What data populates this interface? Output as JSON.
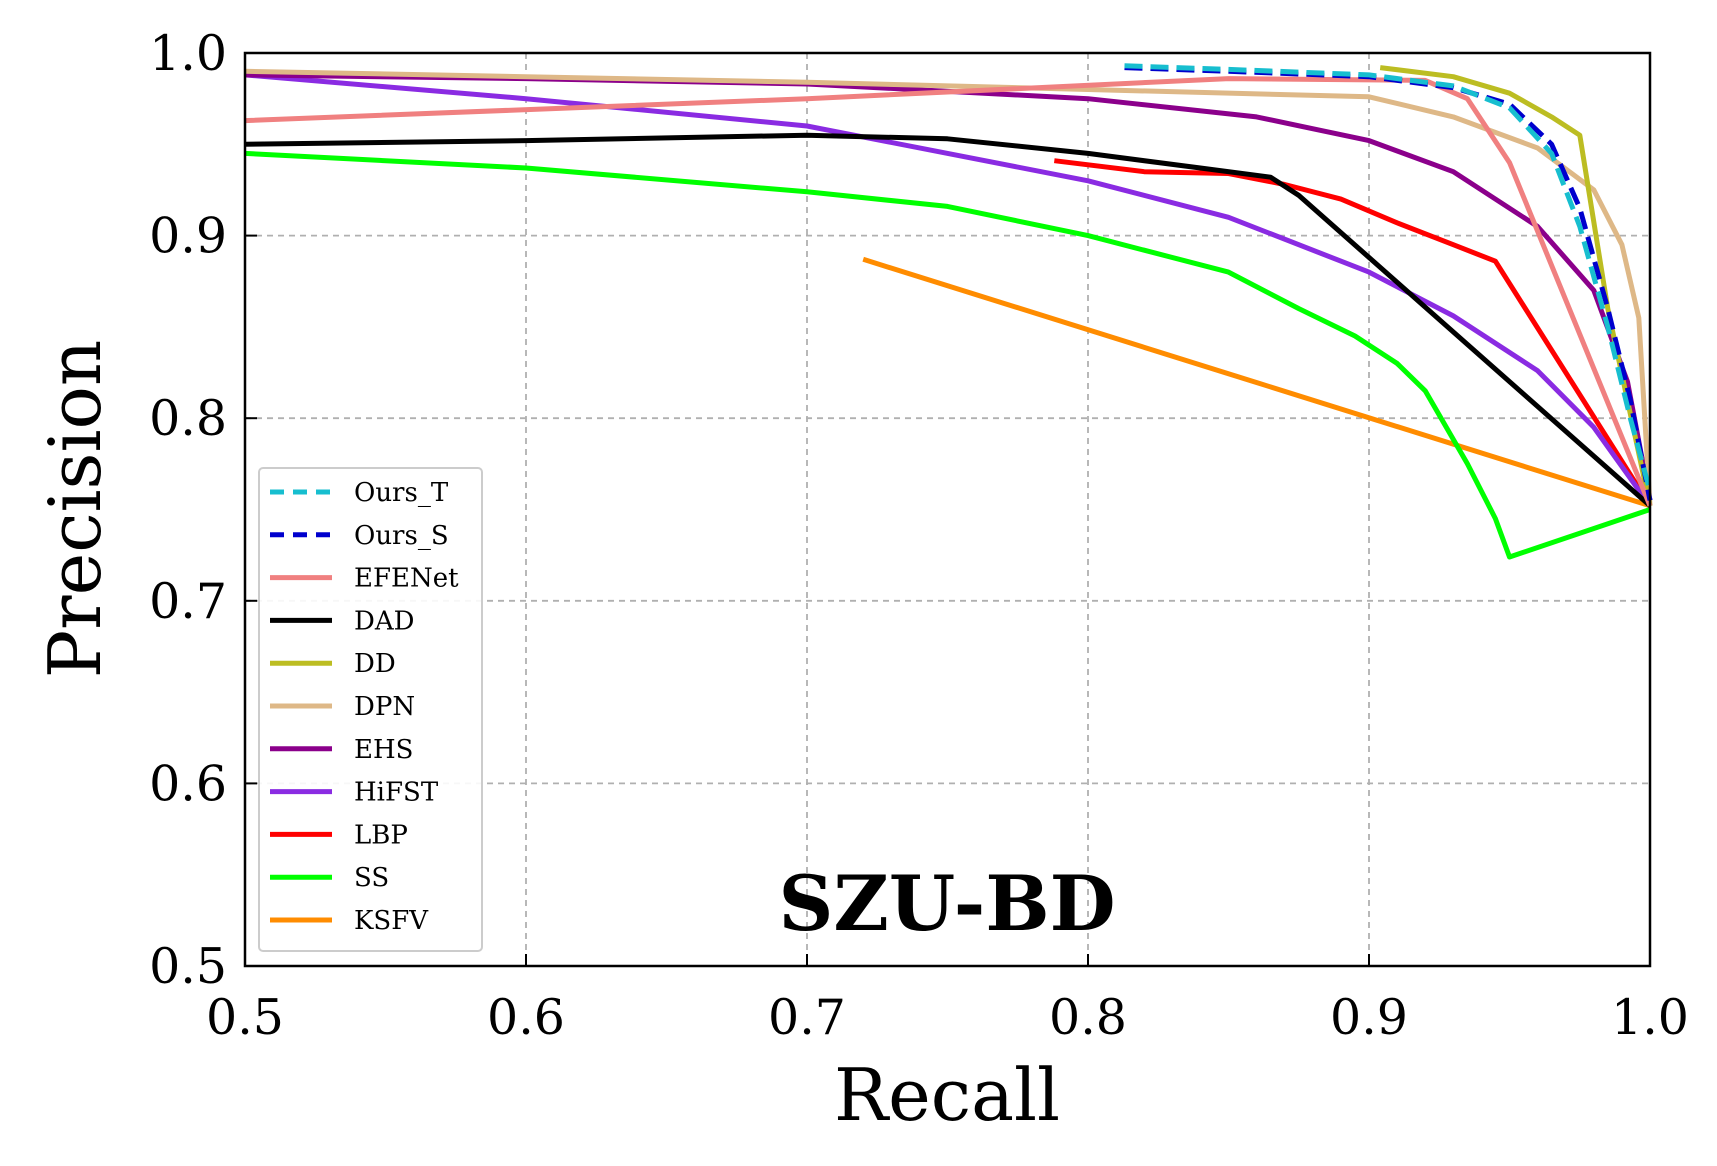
{
  "chart_data": {
    "type": "line",
    "title": "SZU-BD",
    "xlabel": "Recall",
    "ylabel": "Precision",
    "xlim": [
      0.5,
      1.0
    ],
    "ylim": [
      0.5,
      1.0
    ],
    "xticks": [
      "0.5",
      "0.6",
      "0.7",
      "0.8",
      "0.9",
      "1.0"
    ],
    "yticks": [
      "0.5",
      "0.6",
      "0.7",
      "0.8",
      "0.9",
      "1.0"
    ],
    "grid": true,
    "legend_position": "lower-left",
    "series": [
      {
        "name": "Ours_T",
        "color": "#17becf",
        "dash": "dashed",
        "x": [
          0.813,
          0.85,
          0.9,
          0.93,
          0.95,
          0.965,
          0.975,
          0.985,
          0.993,
          1.0
        ],
        "y": [
          0.993,
          0.991,
          0.988,
          0.982,
          0.97,
          0.945,
          0.905,
          0.85,
          0.8,
          0.76
        ]
      },
      {
        "name": "Ours_S",
        "color": "#0000cd",
        "dash": "dashed",
        "x": [
          0.813,
          0.85,
          0.9,
          0.93,
          0.95,
          0.965,
          0.975,
          0.985,
          0.993,
          1.0
        ],
        "y": [
          0.992,
          0.99,
          0.987,
          0.981,
          0.972,
          0.95,
          0.915,
          0.86,
          0.81,
          0.755
        ]
      },
      {
        "name": "EFENet",
        "color": "#f08080",
        "dash": "solid",
        "x": [
          0.5,
          0.7,
          0.85,
          0.92,
          0.935,
          0.95,
          1.0
        ],
        "y": [
          0.963,
          0.975,
          0.986,
          0.985,
          0.975,
          0.94,
          0.752
        ]
      },
      {
        "name": "DAD",
        "color": "#000000",
        "dash": "solid",
        "x": [
          0.5,
          0.6,
          0.7,
          0.75,
          0.8,
          0.84,
          0.865,
          0.875,
          1.0
        ],
        "y": [
          0.95,
          0.952,
          0.955,
          0.953,
          0.945,
          0.937,
          0.932,
          0.922,
          0.752
        ]
      },
      {
        "name": "DD",
        "color": "#bcbd22",
        "dash": "solid",
        "x": [
          0.904,
          0.93,
          0.95,
          0.965,
          0.975,
          0.985,
          1.0
        ],
        "y": [
          0.992,
          0.987,
          0.978,
          0.965,
          0.955,
          0.86,
          0.752
        ]
      },
      {
        "name": "DPN",
        "color": "#deb887",
        "dash": "solid",
        "x": [
          0.5,
          0.6,
          0.7,
          0.8,
          0.9,
          0.93,
          0.96,
          0.98,
          0.99,
          0.996,
          1.0
        ],
        "y": [
          0.99,
          0.987,
          0.984,
          0.98,
          0.976,
          0.965,
          0.948,
          0.925,
          0.895,
          0.855,
          0.752
        ]
      },
      {
        "name": "EHS",
        "color": "#8b008b",
        "dash": "solid",
        "x": [
          0.5,
          0.6,
          0.7,
          0.8,
          0.86,
          0.9,
          0.93,
          0.96,
          0.98,
          0.992,
          1.0
        ],
        "y": [
          0.988,
          0.986,
          0.983,
          0.975,
          0.965,
          0.952,
          0.935,
          0.905,
          0.87,
          0.82,
          0.755
        ]
      },
      {
        "name": "HiFST",
        "color": "#8a2be2",
        "dash": "solid",
        "x": [
          0.5,
          0.6,
          0.7,
          0.8,
          0.85,
          0.9,
          0.93,
          0.96,
          0.98,
          1.0
        ],
        "y": [
          0.988,
          0.975,
          0.96,
          0.93,
          0.91,
          0.88,
          0.856,
          0.826,
          0.795,
          0.752
        ]
      },
      {
        "name": "LBP",
        "color": "#ff0000",
        "dash": "solid",
        "x": [
          0.788,
          0.82,
          0.85,
          0.87,
          0.89,
          0.91,
          0.93,
          0.945,
          1.0
        ],
        "y": [
          0.941,
          0.935,
          0.934,
          0.928,
          0.92,
          0.907,
          0.895,
          0.886,
          0.752
        ]
      },
      {
        "name": "SS",
        "color": "#00ff00",
        "dash": "solid",
        "x": [
          0.5,
          0.6,
          0.7,
          0.75,
          0.8,
          0.85,
          0.875,
          0.895,
          0.91,
          0.92,
          0.935,
          0.945,
          0.95,
          1.0
        ],
        "y": [
          0.945,
          0.937,
          0.924,
          0.916,
          0.9,
          0.88,
          0.86,
          0.845,
          0.83,
          0.815,
          0.775,
          0.745,
          0.724,
          0.75
        ]
      },
      {
        "name": "KSFV",
        "color": "#ff8c00",
        "dash": "solid",
        "x": [
          0.72,
          1.0
        ],
        "y": [
          0.887,
          0.752
        ]
      }
    ]
  }
}
